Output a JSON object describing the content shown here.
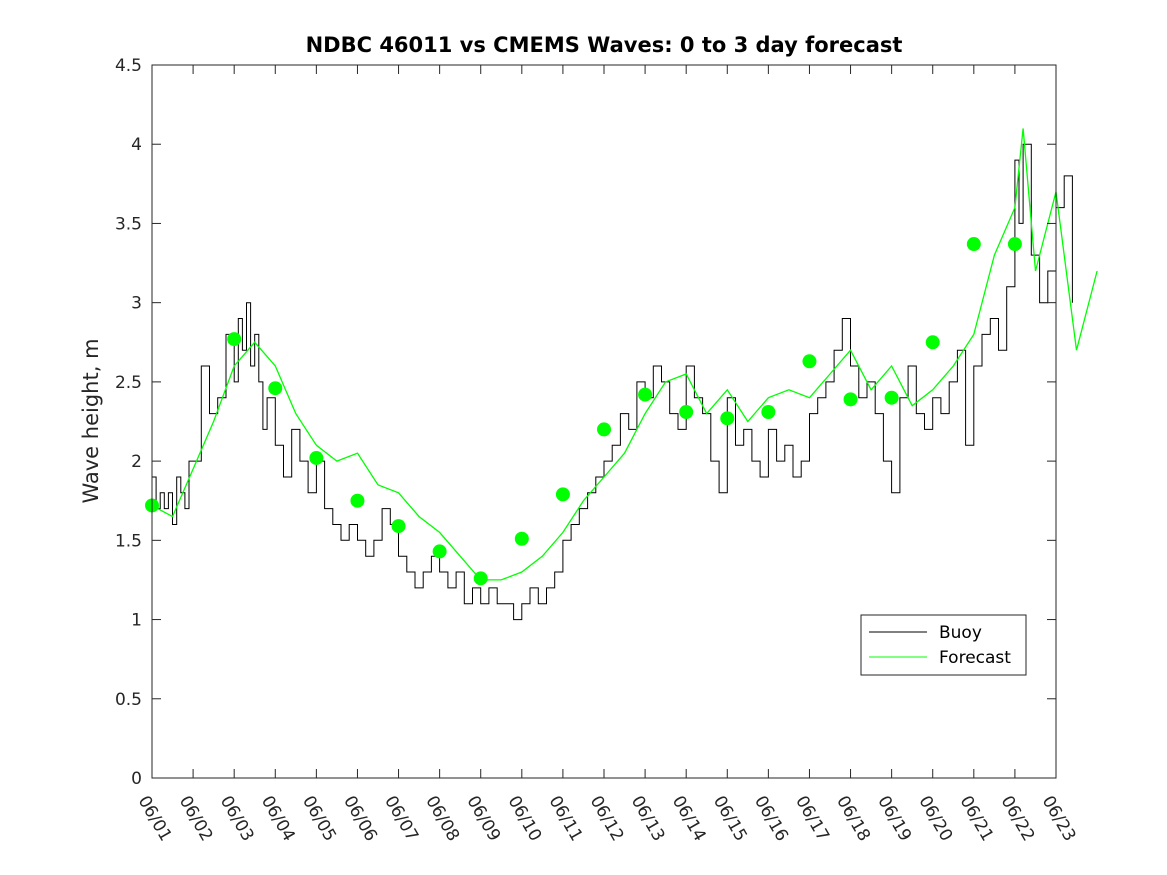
{
  "chart_data": {
    "type": "line",
    "title": "NDBC 46011 vs CMEMS Waves: 0 to 3 day forecast",
    "xlabel": "",
    "ylabel": "Wave height, m",
    "ylim": [
      0,
      4.5
    ],
    "yticks": [
      "0",
      "0.5",
      "1",
      "1.5",
      "2",
      "2.5",
      "3",
      "3.5",
      "4",
      "4.5"
    ],
    "xticks": [
      "06/01",
      "06/02",
      "06/03",
      "06/04",
      "06/05",
      "06/06",
      "06/07",
      "06/08",
      "06/09",
      "06/10",
      "06/11",
      "06/12",
      "06/13",
      "06/14",
      "06/15",
      "06/16",
      "06/17",
      "06/18",
      "06/19",
      "06/20",
      "06/21",
      "06/22",
      "06/23"
    ],
    "x_units": "days since 06/01",
    "legend": {
      "placement": "bottom-right",
      "entries": [
        "Buoy",
        "Forecast"
      ]
    },
    "colors": {
      "buoy": "#000000",
      "forecast": "#00ff00"
    },
    "series": [
      {
        "name": "Buoy",
        "x": [
          0,
          0.1,
          0.2,
          0.3,
          0.4,
          0.5,
          0.6,
          0.7,
          0.8,
          0.9,
          1.0,
          1.2,
          1.4,
          1.6,
          1.8,
          2.0,
          2.1,
          2.2,
          2.3,
          2.4,
          2.5,
          2.6,
          2.7,
          2.8,
          3.0,
          3.2,
          3.4,
          3.6,
          3.8,
          4.0,
          4.2,
          4.4,
          4.6,
          4.8,
          5.0,
          5.2,
          5.4,
          5.6,
          5.8,
          6.0,
          6.2,
          6.4,
          6.6,
          6.8,
          7.0,
          7.2,
          7.4,
          7.6,
          7.8,
          8.0,
          8.2,
          8.4,
          8.6,
          8.8,
          9.0,
          9.2,
          9.4,
          9.6,
          9.8,
          10.0,
          10.2,
          10.4,
          10.6,
          10.8,
          11.0,
          11.2,
          11.4,
          11.6,
          11.8,
          12.0,
          12.2,
          12.4,
          12.6,
          12.8,
          13.0,
          13.2,
          13.4,
          13.6,
          13.8,
          14.0,
          14.2,
          14.4,
          14.6,
          14.8,
          15.0,
          15.2,
          15.4,
          15.6,
          15.8,
          16.0,
          16.2,
          16.4,
          16.6,
          16.8,
          17.0,
          17.2,
          17.4,
          17.6,
          17.8,
          18.0,
          18.2,
          18.4,
          18.6,
          18.8,
          19.0,
          19.2,
          19.4,
          19.6,
          19.8,
          20.0,
          20.2,
          20.4,
          20.6,
          20.8,
          21.0,
          21.1,
          21.2,
          21.4,
          21.6,
          21.8,
          22.0,
          22.2,
          22.4
        ],
        "values": [
          1.9,
          1.7,
          1.8,
          1.7,
          1.8,
          1.6,
          1.9,
          1.8,
          1.7,
          2.0,
          2.0,
          2.6,
          2.3,
          2.4,
          2.8,
          2.5,
          2.9,
          2.7,
          3.0,
          2.6,
          2.8,
          2.5,
          2.2,
          2.4,
          2.1,
          1.9,
          2.2,
          2.0,
          1.8,
          2.0,
          1.7,
          1.6,
          1.5,
          1.6,
          1.5,
          1.4,
          1.5,
          1.7,
          1.6,
          1.4,
          1.3,
          1.2,
          1.3,
          1.4,
          1.3,
          1.2,
          1.3,
          1.1,
          1.2,
          1.1,
          1.2,
          1.1,
          1.1,
          1.0,
          1.1,
          1.2,
          1.1,
          1.2,
          1.3,
          1.5,
          1.6,
          1.7,
          1.8,
          1.9,
          2.0,
          2.1,
          2.3,
          2.2,
          2.5,
          2.4,
          2.6,
          2.5,
          2.3,
          2.2,
          2.6,
          2.4,
          2.3,
          2.0,
          1.8,
          2.4,
          2.1,
          2.2,
          2.0,
          1.9,
          2.2,
          2.0,
          2.1,
          1.9,
          2.0,
          2.3,
          2.4,
          2.5,
          2.7,
          2.9,
          2.6,
          2.4,
          2.5,
          2.3,
          2.0,
          1.8,
          2.4,
          2.6,
          2.3,
          2.2,
          2.4,
          2.3,
          2.5,
          2.7,
          2.1,
          2.6,
          2.8,
          2.9,
          2.7,
          3.1,
          3.9,
          3.5,
          4.0,
          3.3,
          3.0,
          3.2,
          3.6,
          3.8,
          3.0
        ]
      },
      {
        "name": "Forecast",
        "x": [
          0,
          0.5,
          1,
          1.5,
          2,
          2.5,
          3,
          3.5,
          4,
          4.5,
          5,
          5.5,
          6,
          6.5,
          7,
          7.5,
          8,
          8.5,
          9,
          9.5,
          10,
          10.5,
          11,
          11.5,
          12,
          12.5,
          13,
          13.5,
          14,
          14.5,
          15,
          15.5,
          16,
          16.5,
          17,
          17.5,
          18,
          18.5,
          19,
          19.5,
          20,
          20.5,
          21,
          21.2,
          21.5,
          22,
          22.5,
          23
        ],
        "values": [
          1.72,
          1.65,
          1.95,
          2.25,
          2.6,
          2.75,
          2.6,
          2.3,
          2.1,
          2.0,
          2.05,
          1.85,
          1.8,
          1.65,
          1.55,
          1.4,
          1.25,
          1.25,
          1.3,
          1.4,
          1.55,
          1.75,
          1.9,
          2.05,
          2.3,
          2.5,
          2.55,
          2.3,
          2.45,
          2.25,
          2.4,
          2.45,
          2.4,
          2.55,
          2.7,
          2.45,
          2.6,
          2.35,
          2.45,
          2.6,
          2.8,
          3.3,
          3.6,
          4.1,
          3.2,
          3.7,
          2.7,
          3.2
        ]
      }
    ],
    "forecast_markers": {
      "x": [
        0,
        2,
        3,
        4,
        5,
        6,
        7,
        8,
        9,
        10,
        11,
        12,
        13,
        14,
        15,
        16,
        17,
        18,
        19,
        20,
        21
      ],
      "values": [
        1.72,
        2.77,
        2.46,
        2.02,
        1.75,
        1.59,
        1.43,
        1.26,
        1.51,
        1.79,
        2.2,
        2.42,
        2.31,
        2.27,
        2.31,
        2.63,
        2.39,
        2.4,
        2.75,
        3.37,
        3.37
      ]
    }
  }
}
